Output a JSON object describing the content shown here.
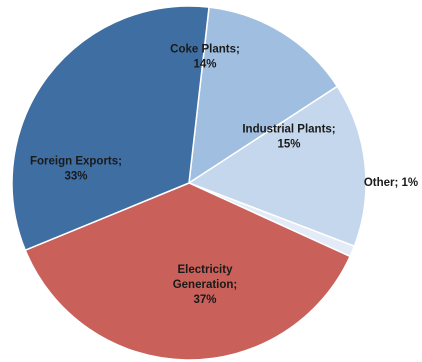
{
  "chart_data": {
    "type": "pie",
    "title": "",
    "label_format": "category; percent",
    "slices": [
      {
        "name": "Coke Plants",
        "percent": 14,
        "color": "#a0bee0",
        "label_lines": [
          "Coke Plants;",
          "14%"
        ]
      },
      {
        "name": "Industrial Plants",
        "percent": 15,
        "color": "#c5d7ec",
        "label_lines": [
          "Industrial Plants;",
          "15%"
        ]
      },
      {
        "name": "Other",
        "percent": 1,
        "color": "#e3ecf6",
        "label_lines": [
          "Other; 1%"
        ]
      },
      {
        "name": "Electricity Generation",
        "percent": 37,
        "color": "#c9605a",
        "label_lines": [
          "Electricity",
          "Generation;",
          "37%"
        ]
      },
      {
        "name": "Foreign Exports",
        "percent": 33,
        "color": "#3f6ea3",
        "label_lines": [
          "Foreign Exports;",
          "33%"
        ]
      }
    ],
    "legend": "none"
  }
}
